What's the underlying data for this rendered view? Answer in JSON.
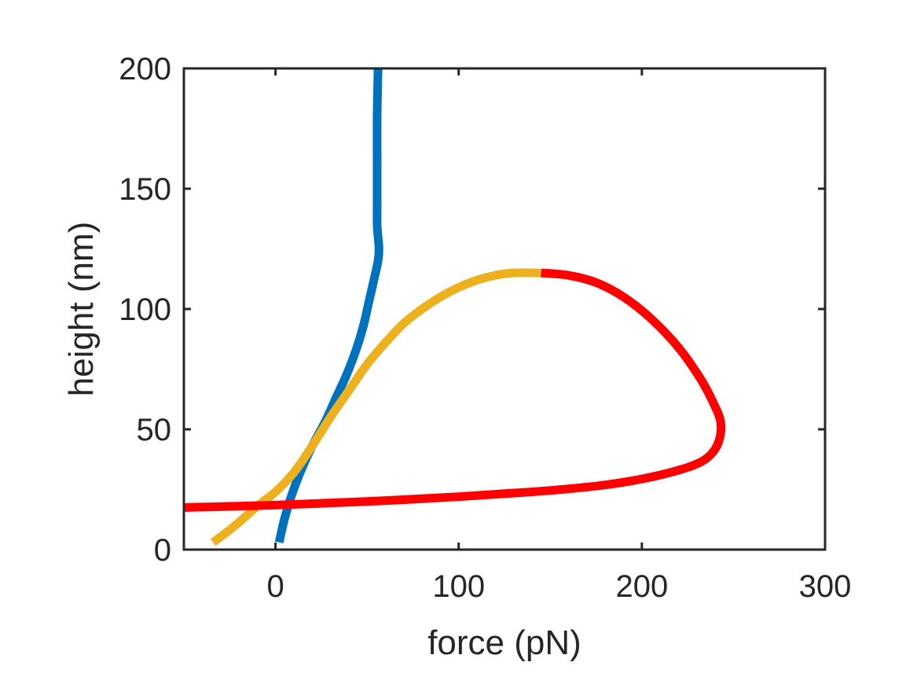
{
  "chart_data": {
    "type": "line",
    "title": "",
    "xlabel": "force (pN)",
    "ylabel": "height (nm)",
    "xlim": [
      -50,
      300
    ],
    "ylim": [
      0,
      200
    ],
    "xticks": [
      0,
      100,
      200,
      300
    ],
    "yticks": [
      0,
      50,
      100,
      150,
      200
    ],
    "grid": false,
    "legend": "none",
    "series": [
      {
        "color": "#0072BD",
        "points": [
          [
            2,
            3
          ],
          [
            5,
            13
          ],
          [
            9,
            23
          ],
          [
            14,
            33
          ],
          [
            20,
            43
          ],
          [
            27,
            53
          ],
          [
            33,
            63
          ],
          [
            39,
            73
          ],
          [
            44,
            83
          ],
          [
            48,
            93
          ],
          [
            51,
            103
          ],
          [
            54,
            113
          ],
          [
            56,
            120
          ],
          [
            56.5,
            125
          ],
          [
            56,
            130
          ],
          [
            55.5,
            135
          ],
          [
            55.5,
            145
          ],
          [
            55.5,
            160
          ],
          [
            55.5,
            180
          ],
          [
            56,
            200
          ]
        ]
      },
      {
        "color": "#EDB120",
        "points": [
          [
            -34,
            3
          ],
          [
            -22,
            10
          ],
          [
            -10,
            18
          ],
          [
            0,
            24
          ],
          [
            10,
            32
          ],
          [
            20,
            43
          ],
          [
            30,
            55
          ],
          [
            40,
            66
          ],
          [
            50,
            77
          ],
          [
            60,
            86
          ],
          [
            70,
            94
          ],
          [
            80,
            100
          ],
          [
            90,
            105
          ],
          [
            100,
            109
          ],
          [
            110,
            112
          ],
          [
            120,
            114
          ],
          [
            130,
            115
          ],
          [
            145,
            115
          ]
        ]
      },
      {
        "color": "#FF0000",
        "points": [
          [
            145,
            115
          ],
          [
            160,
            114
          ],
          [
            175,
            111
          ],
          [
            190,
            105
          ],
          [
            205,
            96
          ],
          [
            220,
            84
          ],
          [
            232,
            71
          ],
          [
            239,
            61
          ],
          [
            243,
            53
          ],
          [
            242,
            45
          ],
          [
            237,
            39
          ],
          [
            228,
            35
          ],
          [
            210,
            31
          ],
          [
            190,
            28
          ],
          [
            170,
            26
          ],
          [
            140,
            24
          ],
          [
            100,
            22
          ],
          [
            50,
            20
          ],
          [
            0,
            18.5
          ],
          [
            -50,
            17.5
          ]
        ]
      }
    ]
  }
}
